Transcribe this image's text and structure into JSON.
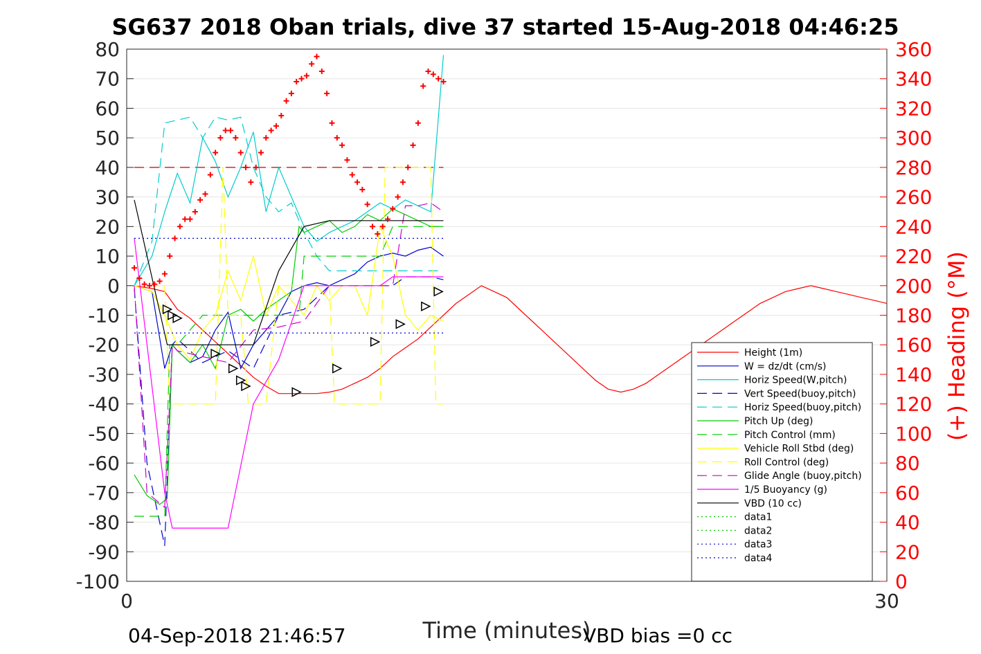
{
  "chart_data": {
    "type": "line",
    "title": "SG637 2018 Oban trials, dive 37 started 15-Aug-2018 04:46:25",
    "xlabel": "Time (minutes)",
    "ylabel": "",
    "ylabel_right": "(+) Heading (°M)",
    "xlim": [
      0,
      30
    ],
    "ylim": [
      -100,
      80
    ],
    "ylim_right": [
      0,
      360
    ],
    "x_ticks": [
      "0",
      "30"
    ],
    "y_ticks": [
      "80",
      "70",
      "60",
      "50",
      "40",
      "30",
      "20",
      "10",
      "0",
      "-10",
      "-20",
      "-30",
      "-40",
      "-50",
      "-60",
      "-70",
      "-80",
      "-90",
      "-100"
    ],
    "y_ticks_right": [
      "360",
      "340",
      "320",
      "300",
      "280",
      "260",
      "240",
      "220",
      "200",
      "180",
      "160",
      "140",
      "120",
      "100",
      "80",
      "60",
      "40",
      "20",
      "0"
    ],
    "grid": true,
    "legend_position": "lower-right",
    "footer_left": "04-Sep-2018 21:46:57",
    "footer_right": "VBD bias =0 cc",
    "series": [
      {
        "name": "Height (1m)",
        "color": "#ff0000",
        "style": "solid",
        "x": [
          0.3,
          1.0,
          1.5,
          2.0,
          2.5,
          3.0,
          3.5,
          4.0,
          4.5,
          5.0,
          5.5,
          6.0,
          6.5,
          7.0,
          7.5,
          8.0,
          8.5,
          9.0,
          9.5,
          10.0,
          10.5,
          11.0,
          11.5,
          12.0,
          12.5,
          13.0,
          13.5,
          14.0,
          14.5,
          15.0,
          15.5,
          16.0,
          16.5,
          17.0,
          17.5,
          18.0,
          18.5,
          19.0,
          19.5,
          20.0,
          20.5,
          21.0,
          21.5,
          22.0,
          22.5,
          23.0,
          23.5,
          24.0,
          24.5,
          25.0,
          25.5,
          26.0,
          26.5,
          27.0,
          27.5,
          28.0,
          28.5,
          29.0,
          29.5,
          30.0
        ],
        "y": [
          0,
          -1,
          -2,
          -8,
          -11,
          -15,
          -19,
          -23,
          -27,
          -31,
          -34,
          -36.5,
          -36.5,
          -36.5,
          -36.5,
          -36,
          -35,
          -33,
          -31,
          -28,
          -24,
          -21,
          -18,
          -14,
          -10,
          -6,
          -3,
          0,
          -2,
          -4,
          -8,
          -12,
          -16,
          -20,
          -24,
          -28,
          -32,
          -35,
          -36,
          -35,
          -33,
          -30,
          -27,
          -24,
          -21,
          -18,
          -15,
          -12,
          -9,
          -6,
          -4,
          -2,
          -1,
          0,
          -1,
          -2,
          -3,
          -4,
          -5,
          -6
        ]
      },
      {
        "name": "W = dz/dt (cm/s)",
        "color": "#0000cc",
        "style": "solid",
        "x": [
          0.3,
          1.0,
          1.5,
          1.8,
          2.0,
          2.5,
          3.0,
          3.5,
          4.0,
          4.5,
          5.0,
          5.5,
          6.0,
          6.5,
          7.0,
          7.5,
          8.0,
          8.5,
          9.0,
          9.5,
          10.0,
          10.5,
          11.0,
          11.5,
          12.0,
          12.5
        ],
        "y": [
          0,
          -2,
          -28,
          -20,
          -22,
          -26,
          -24,
          -15,
          -9,
          -28,
          -20,
          -15,
          -10,
          -2,
          0,
          1,
          0,
          2,
          4,
          8,
          10,
          11,
          10,
          12,
          13,
          10
        ]
      },
      {
        "name": "Horiz Speed(W,pitch)",
        "color": "#00cccc",
        "style": "solid",
        "x": [
          0.3,
          1.0,
          1.5,
          2.0,
          2.5,
          3.0,
          3.5,
          4.0,
          4.5,
          5.0,
          5.5,
          6.0,
          6.5,
          7.0,
          7.5,
          8.0,
          8.5,
          9.0,
          9.5,
          10.0,
          10.5,
          11.0,
          11.5,
          12.0,
          12.5
        ],
        "y": [
          0,
          10,
          25,
          38,
          28,
          50,
          42,
          30,
          40,
          52,
          25,
          40,
          30,
          20,
          15,
          18,
          20,
          22,
          25,
          28,
          26,
          29,
          27,
          25,
          78
        ]
      },
      {
        "name": "Vert Speed(buoy,pitch)",
        "color": "#0000cc",
        "style": "dashed",
        "x": [
          0.3,
          0.8,
          1.5,
          1.8,
          2.0,
          3.0,
          4.0,
          5.0,
          6.0,
          7.0,
          8.0,
          9.0,
          10.0,
          10.5,
          11.0,
          11.5,
          12.0,
          12.5
        ],
        "y": [
          -1,
          -60,
          -88,
          -20,
          -18,
          -26,
          -22,
          -28,
          -10,
          -8,
          0,
          0,
          0,
          0,
          3,
          3,
          3,
          2
        ]
      },
      {
        "name": "Horiz Speed(buoy,pitch)",
        "color": "#00cccc",
        "style": "dashed",
        "x": [
          0.3,
          1.0,
          1.5,
          2.0,
          2.5,
          3.0,
          3.5,
          4.0,
          4.5,
          5.0,
          5.5,
          6.0,
          6.5,
          7.0,
          7.5,
          8.0,
          8.5,
          9.0,
          9.5,
          10.0,
          10.5,
          11.0,
          11.5,
          12.0,
          12.5
        ],
        "y": [
          0,
          15,
          55,
          56,
          57,
          50,
          57,
          56,
          57,
          40,
          30,
          25,
          28,
          18,
          10,
          5,
          5,
          5,
          5,
          5,
          5,
          5,
          5,
          5,
          5
        ]
      },
      {
        "name": "Pitch Up (deg)",
        "color": "#00cc00",
        "style": "solid",
        "x": [
          0.3,
          0.8,
          1.3,
          1.6,
          1.8,
          2.0,
          2.5,
          3.0,
          3.5,
          4.0,
          4.5,
          5.0,
          5.5,
          6.0,
          6.5,
          6.8,
          7.0,
          7.5,
          8.0,
          8.5,
          9.0,
          9.5,
          10.0,
          10.5,
          11.0,
          11.5,
          12.0,
          12.5
        ],
        "y": [
          -64,
          -71,
          -74,
          -72,
          -20,
          -22,
          -26,
          -20,
          -28,
          -10,
          -8,
          -12,
          -8,
          -5,
          -2,
          20,
          18,
          20,
          22,
          18,
          20,
          24,
          22,
          26,
          24,
          22,
          20,
          20
        ]
      },
      {
        "name": "Pitch Control (mm)",
        "color": "#00cc00",
        "style": "dashed",
        "x": [
          0.3,
          1.5,
          1.7,
          2.0,
          3.0,
          4.0,
          5.0,
          6.0,
          6.8,
          7.0,
          8.0,
          9.0,
          10.0,
          10.5,
          11.0,
          12.0,
          12.5
        ],
        "y": [
          -78,
          -78,
          -20,
          -20,
          -10,
          -10,
          -10,
          -10,
          -10,
          10,
          10,
          10,
          10,
          20,
          20,
          20,
          20
        ]
      },
      {
        "name": "Vehicle Roll Stbd (deg)",
        "color": "#ffff00",
        "style": "solid",
        "x": [
          0.3,
          1.0,
          1.5,
          2.0,
          2.5,
          3.0,
          3.5,
          4.0,
          4.5,
          5.0,
          5.5,
          6.0,
          6.5,
          7.0,
          7.5,
          8.0,
          8.5,
          9.0,
          9.5,
          10.0,
          10.5,
          11.0,
          11.5,
          12.0,
          12.5
        ],
        "y": [
          0,
          -2,
          -10,
          -20,
          -25,
          -15,
          -10,
          5,
          -5,
          10,
          -10,
          0,
          -5,
          -10,
          0,
          -5,
          0,
          0,
          -10,
          20,
          10,
          -10,
          -15,
          -10,
          -12
        ]
      },
      {
        "name": "Roll Control (deg)",
        "color": "#ffff00",
        "style": "dashed",
        "x": [
          0.3,
          1.5,
          1.7,
          2.0,
          2.5,
          3.0,
          3.5,
          3.8,
          4.0,
          4.5,
          4.8,
          5.0,
          5.5,
          6.0,
          6.5,
          7.0,
          7.5,
          8.0,
          8.2,
          8.5,
          9.0,
          9.5,
          10.0,
          10.2,
          10.5,
          11.0,
          11.5,
          12.0,
          12.2,
          12.5
        ],
        "y": [
          0,
          0,
          -40,
          -40,
          -40,
          -40,
          -40,
          40,
          -10,
          -10,
          -40,
          -40,
          -40,
          0,
          0,
          0,
          0,
          0,
          -40,
          -40,
          -40,
          -40,
          -40,
          40,
          40,
          40,
          40,
          40,
          -40,
          -40
        ]
      },
      {
        "name": "Glide Angle (buoy,pitch)",
        "color": "#cc00cc",
        "style": "dashed",
        "x": [
          0.3,
          0.8,
          1.5,
          1.8,
          2.0,
          3.0,
          4.0,
          5.0,
          6.0,
          7.0,
          8.0,
          9.0,
          10.0,
          10.5,
          11.0,
          11.5,
          12.0,
          12.5
        ],
        "y": [
          0,
          -70,
          -75,
          -20,
          -22,
          -24,
          -26,
          -15,
          -14,
          -12,
          0,
          0,
          0,
          0,
          27,
          27,
          28,
          25
        ]
      },
      {
        "name": "1/5 Buoyancy (g)",
        "color": "#ff00ff",
        "style": "solid",
        "x": [
          0.3,
          1.5,
          1.8,
          2.0,
          3.0,
          4.0,
          5.0,
          6.0,
          7.0,
          8.0,
          9.0,
          10.0,
          10.5,
          11.0,
          12.0,
          12.5
        ],
        "y": [
          16,
          -70,
          -82,
          -82,
          -82,
          -82,
          -40,
          -25,
          0,
          0,
          0,
          0,
          3,
          3,
          3,
          3
        ]
      },
      {
        "name": "VBD (10 cc)",
        "color": "#000000",
        "style": "solid",
        "x": [
          0.3,
          1.6,
          2.0,
          3.0,
          4.0,
          5.0,
          6.0,
          7.0,
          8.0,
          8.2,
          9.0,
          10.0,
          11.0,
          12.0,
          12.5
        ],
        "y": [
          29,
          -20,
          -20,
          -20,
          -20,
          -20,
          5,
          20,
          22,
          22,
          22,
          22,
          22,
          22,
          22
        ]
      },
      {
        "name": "data1",
        "color": "#00cc00",
        "style": "dotted",
        "x": [],
        "y": []
      },
      {
        "name": "data2",
        "color": "#00cc00",
        "style": "dotted",
        "x": [],
        "y": []
      },
      {
        "name": "data3",
        "color": "#0000cc",
        "style": "dotted",
        "x": [
          0.3,
          12.5
        ],
        "y": [
          16,
          16
        ]
      },
      {
        "name": "data4",
        "color": "#0000cc",
        "style": "dotted",
        "x": [
          0.3,
          12.5
        ],
        "y": [
          -16,
          -16
        ]
      }
    ],
    "heading": {
      "name": "(+) Heading (°M)",
      "color": "#ff0000",
      "x": [
        0.3,
        0.5,
        0.7,
        0.9,
        1.1,
        1.3,
        1.5,
        1.7,
        1.9,
        2.1,
        2.3,
        2.5,
        2.7,
        2.9,
        3.1,
        3.3,
        3.5,
        3.7,
        3.9,
        4.1,
        4.3,
        4.5,
        4.7,
        4.9,
        5.1,
        5.3,
        5.5,
        5.7,
        5.9,
        6.1,
        6.3,
        6.5,
        6.7,
        6.9,
        7.1,
        7.3,
        7.5,
        7.7,
        7.9,
        8.1,
        8.3,
        8.5,
        8.7,
        8.9,
        9.1,
        9.3,
        9.5,
        9.7,
        9.9,
        10.1,
        10.3,
        10.5,
        10.7,
        10.9,
        11.1,
        11.3,
        11.5,
        11.7,
        11.9,
        12.1,
        12.3,
        12.5
      ],
      "y": [
        212,
        205,
        201,
        200,
        201,
        203,
        208,
        220,
        232,
        240,
        245,
        245,
        250,
        258,
        262,
        275,
        290,
        300,
        305,
        305,
        300,
        290,
        280,
        270,
        280,
        290,
        300,
        305,
        308,
        315,
        325,
        330,
        338,
        340,
        342,
        350,
        355,
        345,
        330,
        310,
        300,
        295,
        285,
        275,
        270,
        265,
        255,
        240,
        235,
        240,
        245,
        252,
        260,
        270,
        280,
        295,
        310,
        335,
        345,
        343,
        340,
        338
      ]
    },
    "references": [
      {
        "label": "",
        "color": "#cc0000",
        "style": "dashed",
        "y_right": 280,
        "x": [
          0.3,
          12.5
        ]
      }
    ],
    "markers": {
      "color": "#000000",
      "x": [
        1.6,
        1.8,
        2.0,
        3.5,
        4.2,
        4.5,
        4.7,
        6.7,
        8.3,
        9.8,
        10.8,
        11.8,
        12.3
      ],
      "y": [
        -8,
        -10,
        -11,
        -23,
        -28,
        -32,
        -34,
        -36,
        -28,
        -19,
        -13,
        -7,
        -2
      ]
    }
  }
}
